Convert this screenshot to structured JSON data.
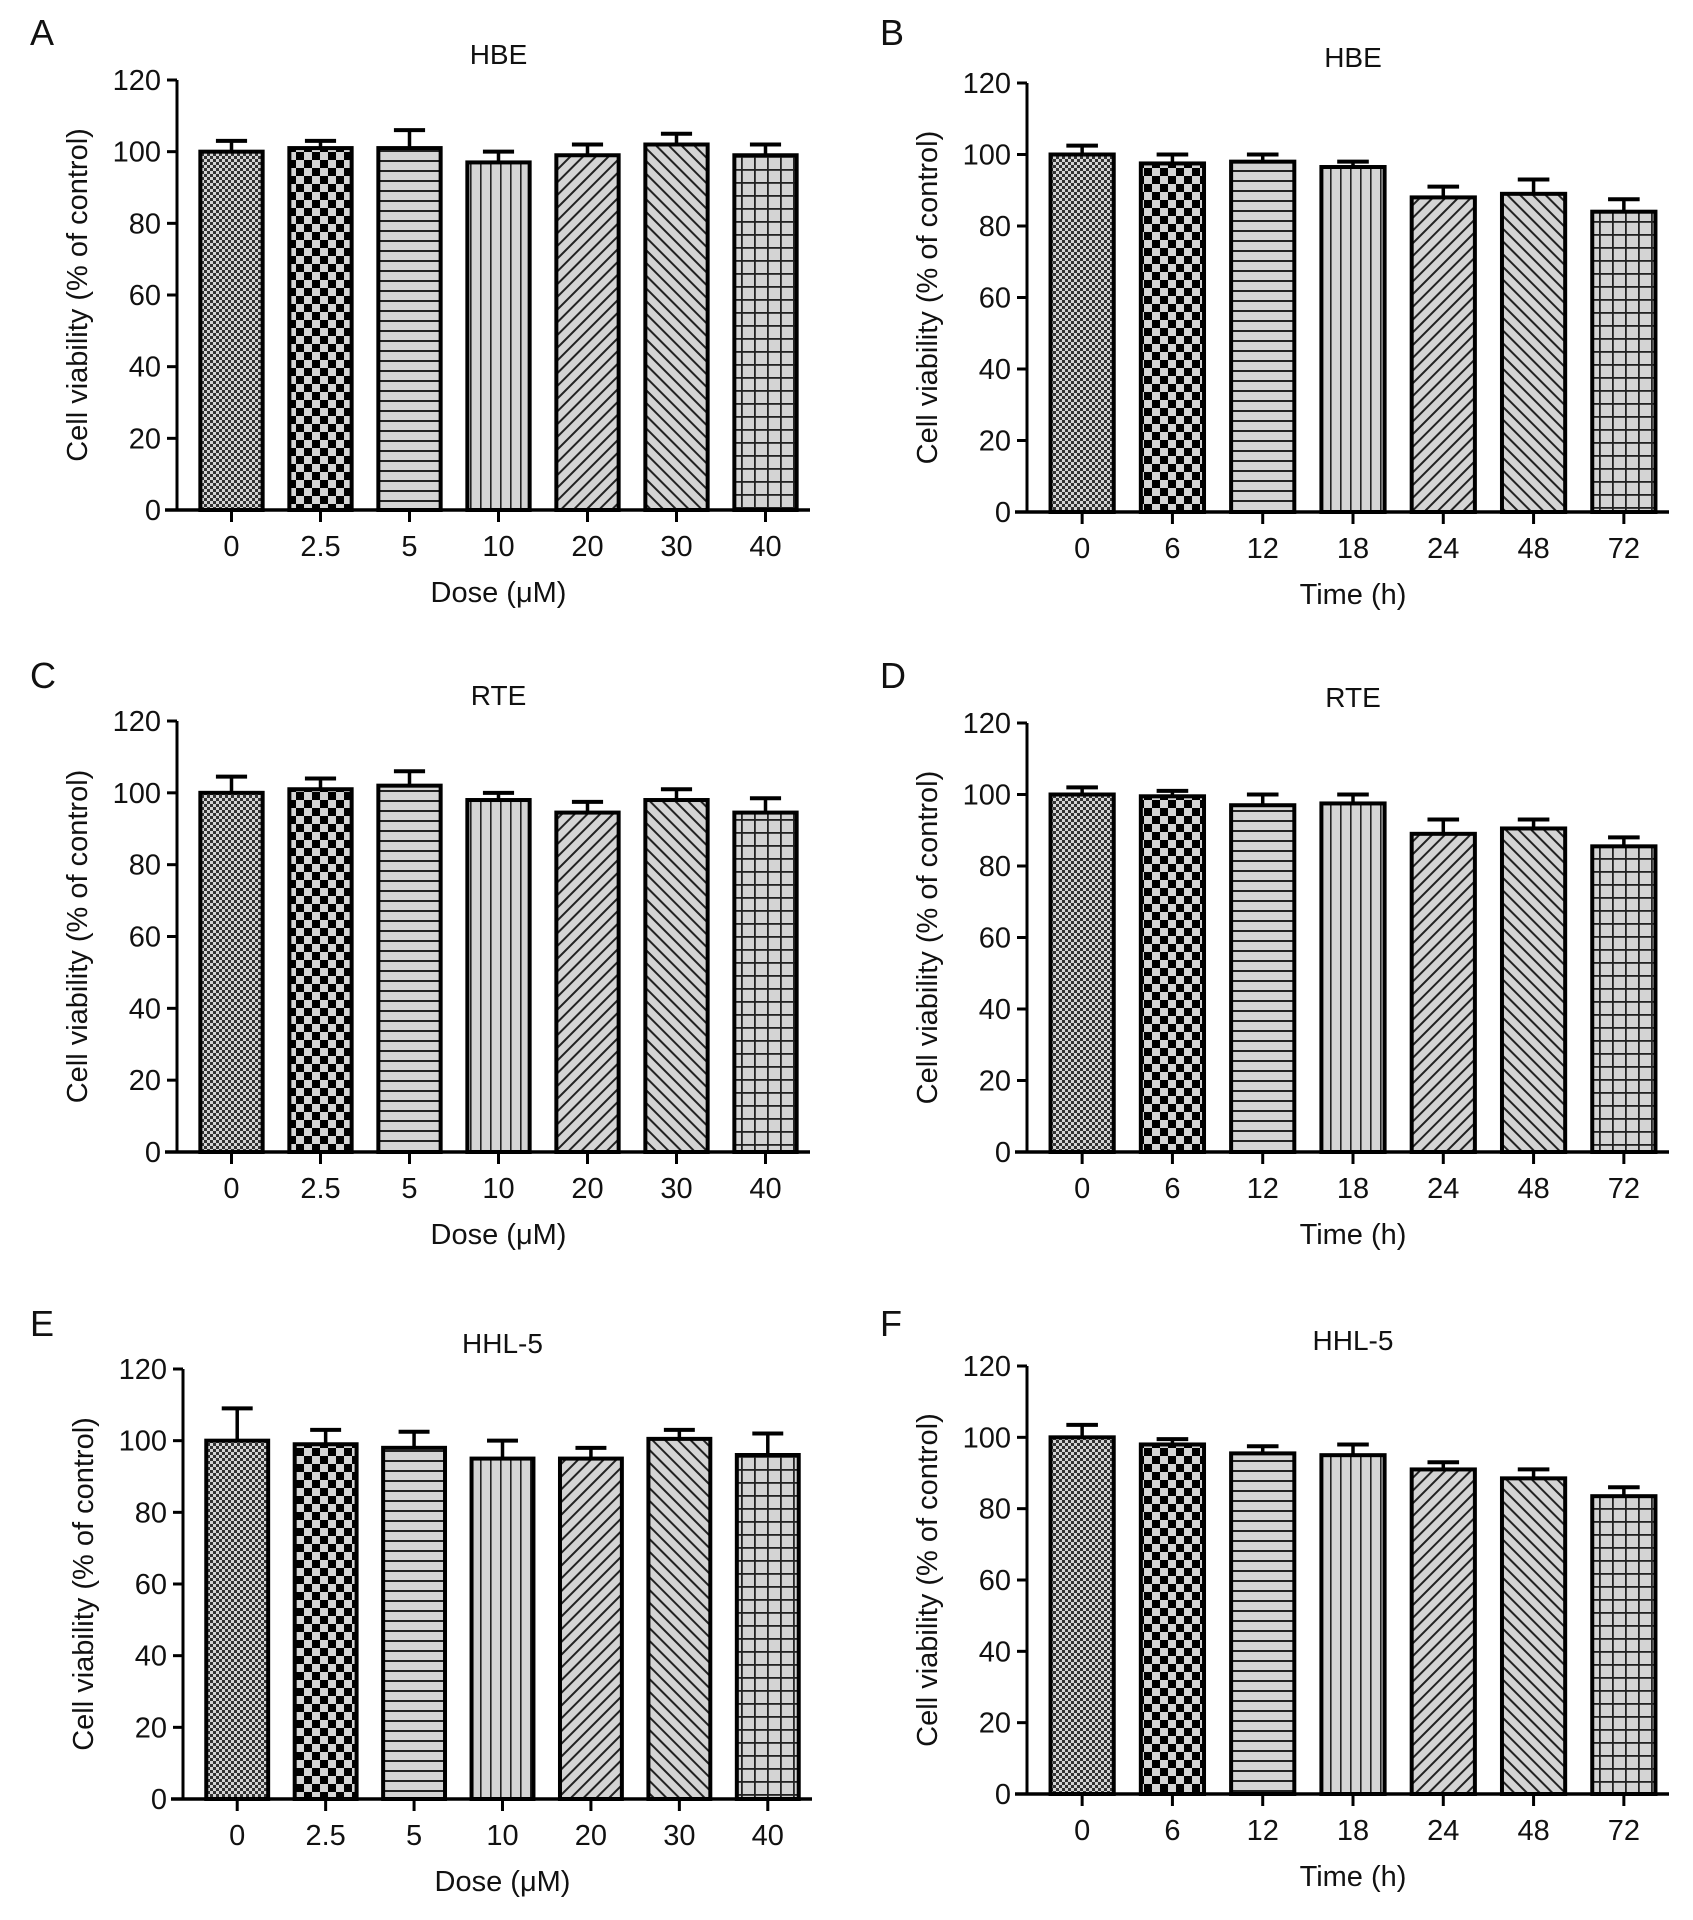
{
  "chart_data": [
    {
      "panel": "A",
      "type": "bar",
      "title": "HBE",
      "xlabel": "Dose (μM)",
      "ylabel": "Cell viability (% of control)",
      "ylim": [
        0,
        120
      ],
      "yticks": [
        0,
        20,
        40,
        60,
        80,
        100,
        120
      ],
      "categories": [
        "0",
        "2.5",
        "5",
        "10",
        "20",
        "30",
        "40"
      ],
      "values": [
        100,
        101,
        101,
        97,
        99,
        102,
        99
      ],
      "errors": [
        3,
        2,
        5,
        3,
        3,
        3,
        3
      ]
    },
    {
      "panel": "B",
      "type": "bar",
      "title": "HBE",
      "xlabel": "Time (h)",
      "ylabel": "Cell viability (% of control)",
      "ylim": [
        0,
        120
      ],
      "yticks": [
        0,
        20,
        40,
        60,
        80,
        100,
        120
      ],
      "categories": [
        "0",
        "6",
        "12",
        "18",
        "24",
        "48",
        "72"
      ],
      "values": [
        100,
        97.5,
        98,
        96.5,
        88,
        89,
        84
      ],
      "errors": [
        2.5,
        2.5,
        2,
        1.5,
        3,
        4,
        3.5
      ]
    },
    {
      "panel": "C",
      "type": "bar",
      "title": "RTE",
      "xlabel": "Dose (μM)",
      "ylabel": "Cell viability (% of control)",
      "ylim": [
        0,
        120
      ],
      "yticks": [
        0,
        20,
        40,
        60,
        80,
        100,
        120
      ],
      "categories": [
        "0",
        "2.5",
        "5",
        "10",
        "20",
        "30",
        "40"
      ],
      "values": [
        100,
        101,
        102,
        98,
        94.5,
        98,
        94.5
      ],
      "errors": [
        4.5,
        3,
        4,
        2,
        3,
        3,
        4
      ]
    },
    {
      "panel": "D",
      "type": "bar",
      "title": "RTE",
      "xlabel": "Time (h)",
      "ylabel": "Cell viability (% of control)",
      "ylim": [
        0,
        120
      ],
      "yticks": [
        0,
        20,
        40,
        60,
        80,
        100,
        120
      ],
      "categories": [
        "0",
        "6",
        "12",
        "18",
        "24",
        "48",
        "72"
      ],
      "values": [
        100,
        99.5,
        97,
        97.5,
        89,
        90.5,
        85.5
      ],
      "errors": [
        2,
        1.5,
        3,
        2.5,
        4,
        2.5,
        2.5
      ]
    },
    {
      "panel": "E",
      "type": "bar",
      "title": "HHL-5",
      "xlabel": "Dose (μM)",
      "ylabel": "Cell viability (% of control)",
      "ylim": [
        0,
        120
      ],
      "yticks": [
        0,
        20,
        40,
        60,
        80,
        100,
        120
      ],
      "categories": [
        "0",
        "2.5",
        "5",
        "10",
        "20",
        "30",
        "40"
      ],
      "values": [
        100,
        99,
        98,
        95,
        95,
        100.5,
        96
      ],
      "errors": [
        9,
        4,
        4.5,
        5,
        3,
        2.5,
        6
      ]
    },
    {
      "panel": "F",
      "type": "bar",
      "title": "HHL-5",
      "xlabel": "Time (h)",
      "ylabel": "Cell viability (% of control)",
      "ylim": [
        0,
        120
      ],
      "yticks": [
        0,
        20,
        40,
        60,
        80,
        100,
        120
      ],
      "categories": [
        "0",
        "6",
        "12",
        "18",
        "24",
        "48",
        "72"
      ],
      "values": [
        100,
        98,
        95.5,
        95,
        91,
        88.5,
        83.5
      ],
      "errors": [
        3.5,
        1.5,
        2,
        3,
        2,
        2.5,
        2.5
      ]
    }
  ],
  "colors": {
    "bar_fill": "#d4d4d4",
    "ink": "#000000"
  },
  "bar_patterns": [
    "fine-dots",
    "checkerboard",
    "horizontal-lines",
    "vertical-lines",
    "diagonal-forward",
    "diagonal-back",
    "grid"
  ]
}
